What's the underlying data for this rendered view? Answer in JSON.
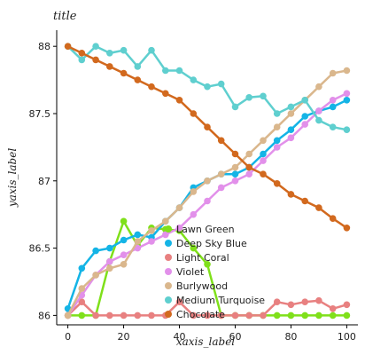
{
  "chart_data": {
    "type": "line",
    "title": "title",
    "xlabel": "xaxis_label",
    "ylabel": "yaxis_label",
    "xlim": [
      -4,
      104
    ],
    "ylim": [
      85.93,
      88.12
    ],
    "xticks": [
      0,
      20,
      40,
      60,
      80,
      100
    ],
    "yticks": [
      86,
      86.5,
      87,
      87.5,
      88
    ],
    "ytick_labels": [
      "86",
      "86.5",
      "87",
      "87.5",
      "88"
    ],
    "grid": false,
    "legend_placement": "center",
    "series": [
      {
        "name": "Lawn Green",
        "color": "#7fe01a",
        "x": [
          0,
          5,
          10,
          15,
          20,
          25,
          30,
          35,
          40,
          45,
          50,
          55,
          60,
          65,
          70,
          75,
          80,
          85,
          90,
          95,
          100
        ],
        "y": [
          86.0,
          86.0,
          86.0,
          86.4,
          86.7,
          86.52,
          86.65,
          86.64,
          86.63,
          86.5,
          86.38,
          86.0,
          86.0,
          86.0,
          86.0,
          86.0,
          86.0,
          86.0,
          86.0,
          86.0,
          86.0
        ]
      },
      {
        "name": "Deep Sky Blue",
        "color": "#14b4e6",
        "x": [
          0,
          5,
          10,
          15,
          20,
          25,
          30,
          35,
          40,
          45,
          50,
          55,
          60,
          65,
          70,
          75,
          80,
          85,
          90,
          95,
          100
        ],
        "y": [
          86.05,
          86.35,
          86.48,
          86.5,
          86.56,
          86.6,
          86.58,
          86.7,
          86.8,
          86.95,
          87.0,
          87.05,
          87.05,
          87.1,
          87.2,
          87.3,
          87.38,
          87.48,
          87.52,
          87.55,
          87.6
        ]
      },
      {
        "name": "Light Coral",
        "color": "#e88080",
        "x": [
          0,
          5,
          10,
          15,
          20,
          25,
          30,
          35,
          40,
          45,
          50,
          55,
          60,
          65,
          70,
          75,
          80,
          85,
          90,
          95,
          100
        ],
        "y": [
          86.0,
          86.1,
          86.0,
          86.0,
          86.0,
          86.0,
          86.0,
          86.0,
          86.1,
          86.0,
          86.0,
          86.0,
          86.0,
          86.0,
          86.0,
          86.1,
          86.08,
          86.1,
          86.11,
          86.05,
          86.08
        ]
      },
      {
        "name": "Violet",
        "color": "#e290ea",
        "x": [
          0,
          5,
          10,
          15,
          20,
          25,
          30,
          35,
          40,
          45,
          50,
          55,
          60,
          65,
          70,
          75,
          80,
          85,
          90,
          95,
          100
        ],
        "y": [
          86.0,
          86.15,
          86.3,
          86.4,
          86.45,
          86.5,
          86.55,
          86.6,
          86.65,
          86.75,
          86.85,
          86.95,
          87.0,
          87.05,
          87.15,
          87.25,
          87.32,
          87.42,
          87.52,
          87.6,
          87.65
        ]
      },
      {
        "name": "Burlywood",
        "color": "#dab78d",
        "x": [
          0,
          5,
          10,
          15,
          20,
          25,
          30,
          35,
          40,
          45,
          50,
          55,
          60,
          65,
          70,
          75,
          80,
          85,
          90,
          95,
          100
        ],
        "y": [
          86.0,
          86.2,
          86.3,
          86.35,
          86.38,
          86.55,
          86.63,
          86.7,
          86.8,
          86.92,
          87.0,
          87.05,
          87.1,
          87.2,
          87.3,
          87.4,
          87.5,
          87.6,
          87.7,
          87.8,
          87.82
        ]
      },
      {
        "name": "Medium Turquoise",
        "color": "#5fcfcf",
        "x": [
          0,
          5,
          10,
          15,
          20,
          25,
          30,
          35,
          40,
          45,
          50,
          55,
          60,
          65,
          70,
          75,
          80,
          85,
          90,
          95,
          100
        ],
        "y": [
          88.0,
          87.9,
          88.0,
          87.95,
          87.97,
          87.85,
          87.97,
          87.82,
          87.82,
          87.75,
          87.7,
          87.72,
          87.55,
          87.62,
          87.63,
          87.5,
          87.55,
          87.6,
          87.45,
          87.4,
          87.38
        ]
      },
      {
        "name": "Chocolate",
        "color": "#d2691e",
        "x": [
          0,
          5,
          10,
          15,
          20,
          25,
          30,
          35,
          40,
          45,
          50,
          55,
          60,
          65,
          70,
          75,
          80,
          85,
          90,
          95,
          100
        ],
        "y": [
          88.0,
          87.95,
          87.9,
          87.85,
          87.8,
          87.75,
          87.7,
          87.65,
          87.6,
          87.5,
          87.4,
          87.3,
          87.2,
          87.1,
          87.05,
          86.98,
          86.9,
          86.85,
          86.8,
          86.72,
          86.65
        ]
      }
    ],
    "legend_entries": [
      "Lawn Green",
      "Deep Sky Blue",
      "Light Coral",
      "Violet",
      "Burlywood",
      "Medium Turquoise",
      "Chocolate"
    ]
  }
}
